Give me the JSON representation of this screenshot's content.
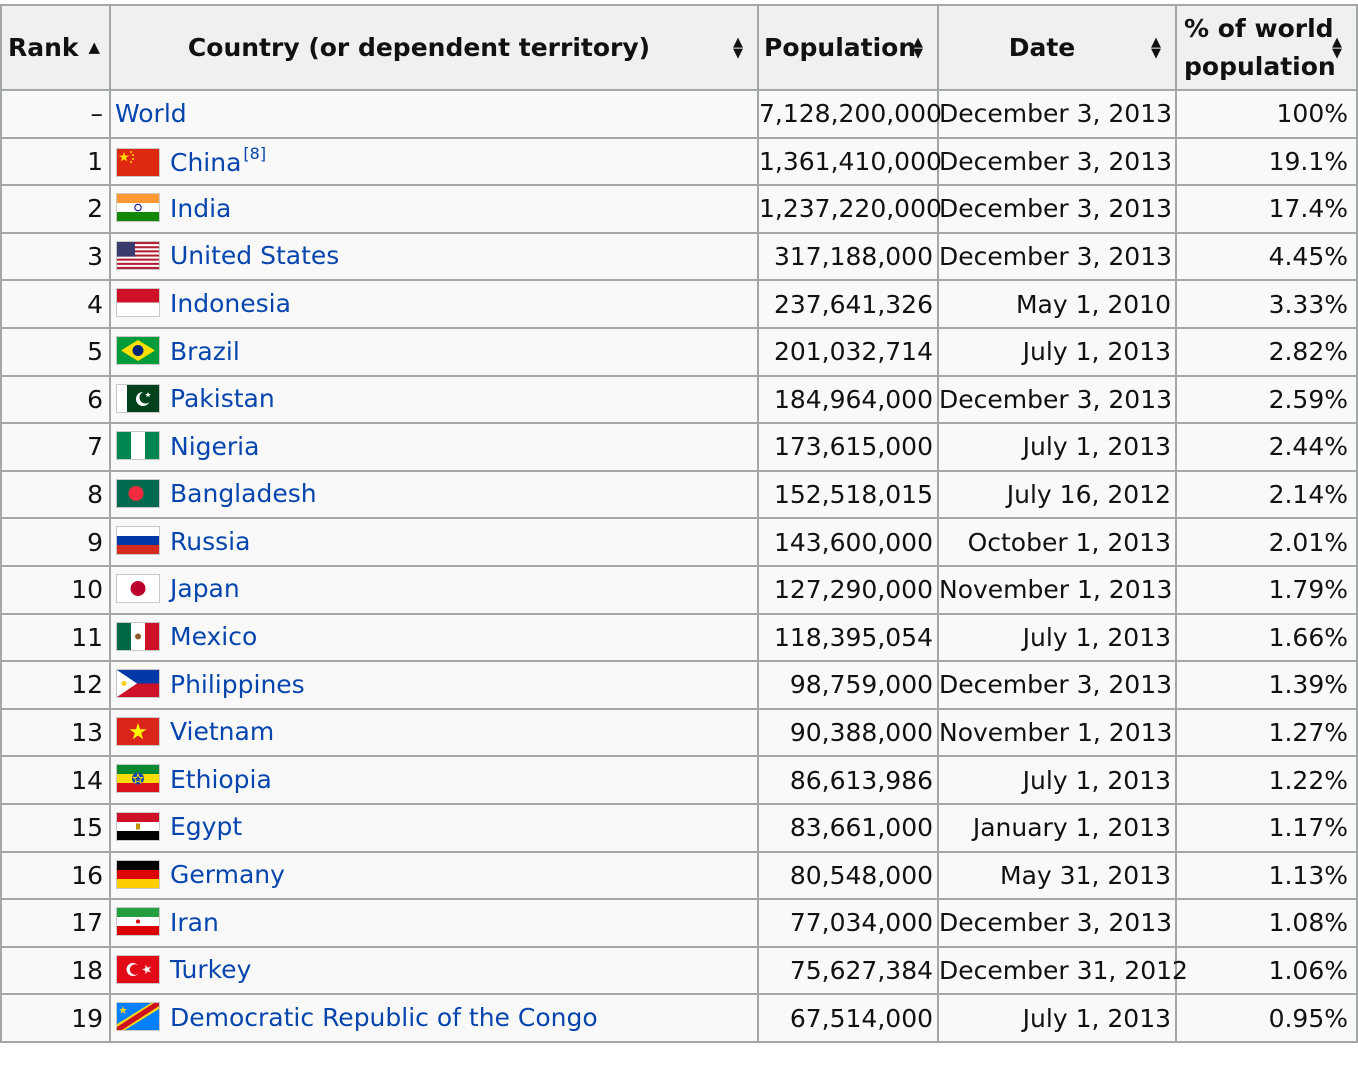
{
  "table": {
    "headers": {
      "rank": "Rank",
      "country": "Country (or dependent territory)",
      "population": "Population",
      "date": "Date",
      "pct_line1": "% of world",
      "pct_line2": "population"
    },
    "sort_icons": {
      "ascending": "sort-up-icon",
      "both": "sort-both-icon"
    },
    "rows": [
      {
        "rank": "–",
        "country": "World",
        "population": "7,128,200,000",
        "date": "December 3, 2013",
        "pct": "100%",
        "flag": null
      },
      {
        "rank": "1",
        "country": "China",
        "ref": "[8]",
        "population": "1,361,410,000",
        "date": "December 3, 2013",
        "pct": "19.1%",
        "flag": "china-flag-icon"
      },
      {
        "rank": "2",
        "country": "India",
        "population": "1,237,220,000",
        "date": "December 3, 2013",
        "pct": "17.4%",
        "flag": "india-flag-icon"
      },
      {
        "rank": "3",
        "country": "United States",
        "population": "317,188,000",
        "date": "December 3, 2013",
        "pct": "4.45%",
        "flag": "united-states-flag-icon"
      },
      {
        "rank": "4",
        "country": "Indonesia",
        "population": "237,641,326",
        "date": "May 1, 2010",
        "pct": "3.33%",
        "flag": "indonesia-flag-icon"
      },
      {
        "rank": "5",
        "country": "Brazil",
        "population": "201,032,714",
        "date": "July 1, 2013",
        "pct": "2.82%",
        "flag": "brazil-flag-icon"
      },
      {
        "rank": "6",
        "country": "Pakistan",
        "population": "184,964,000",
        "date": "December 3, 2013",
        "pct": "2.59%",
        "flag": "pakistan-flag-icon"
      },
      {
        "rank": "7",
        "country": "Nigeria",
        "population": "173,615,000",
        "date": "July 1, 2013",
        "pct": "2.44%",
        "flag": "nigeria-flag-icon"
      },
      {
        "rank": "8",
        "country": "Bangladesh",
        "population": "152,518,015",
        "date": "July 16, 2012",
        "pct": "2.14%",
        "flag": "bangladesh-flag-icon"
      },
      {
        "rank": "9",
        "country": "Russia",
        "population": "143,600,000",
        "date": "October 1, 2013",
        "pct": "2.01%",
        "flag": "russia-flag-icon"
      },
      {
        "rank": "10",
        "country": "Japan",
        "population": "127,290,000",
        "date": "November 1, 2013",
        "pct": "1.79%",
        "flag": "japan-flag-icon"
      },
      {
        "rank": "11",
        "country": "Mexico",
        "population": "118,395,054",
        "date": "July 1, 2013",
        "pct": "1.66%",
        "flag": "mexico-flag-icon"
      },
      {
        "rank": "12",
        "country": "Philippines",
        "population": "98,759,000",
        "date": "December 3, 2013",
        "pct": "1.39%",
        "flag": "philippines-flag-icon"
      },
      {
        "rank": "13",
        "country": "Vietnam",
        "population": "90,388,000",
        "date": "November 1, 2013",
        "pct": "1.27%",
        "flag": "vietnam-flag-icon"
      },
      {
        "rank": "14",
        "country": "Ethiopia",
        "population": "86,613,986",
        "date": "July 1, 2013",
        "pct": "1.22%",
        "flag": "ethiopia-flag-icon"
      },
      {
        "rank": "15",
        "country": "Egypt",
        "population": "83,661,000",
        "date": "January 1, 2013",
        "pct": "1.17%",
        "flag": "egypt-flag-icon"
      },
      {
        "rank": "16",
        "country": "Germany",
        "population": "80,548,000",
        "date": "May 31, 2013",
        "pct": "1.13%",
        "flag": "germany-flag-icon"
      },
      {
        "rank": "17",
        "country": "Iran",
        "population": "77,034,000",
        "date": "December 3, 2013",
        "pct": "1.08%",
        "flag": "iran-flag-icon"
      },
      {
        "rank": "18",
        "country": "Turkey",
        "population": "75,627,384",
        "date": "December 31, 2012",
        "pct": "1.06%",
        "flag": "turkey-flag-icon"
      },
      {
        "rank": "19",
        "country": "Democratic Republic of the Congo",
        "population": "67,514,000",
        "date": "July 1, 2013",
        "pct": "0.95%",
        "flag": "drc-flag-icon"
      }
    ]
  },
  "colors": {
    "link": "#0645ad",
    "header_bg": "#eef0f2",
    "cell_bg": "#f9f9f9",
    "border": "#a4a7a8"
  }
}
